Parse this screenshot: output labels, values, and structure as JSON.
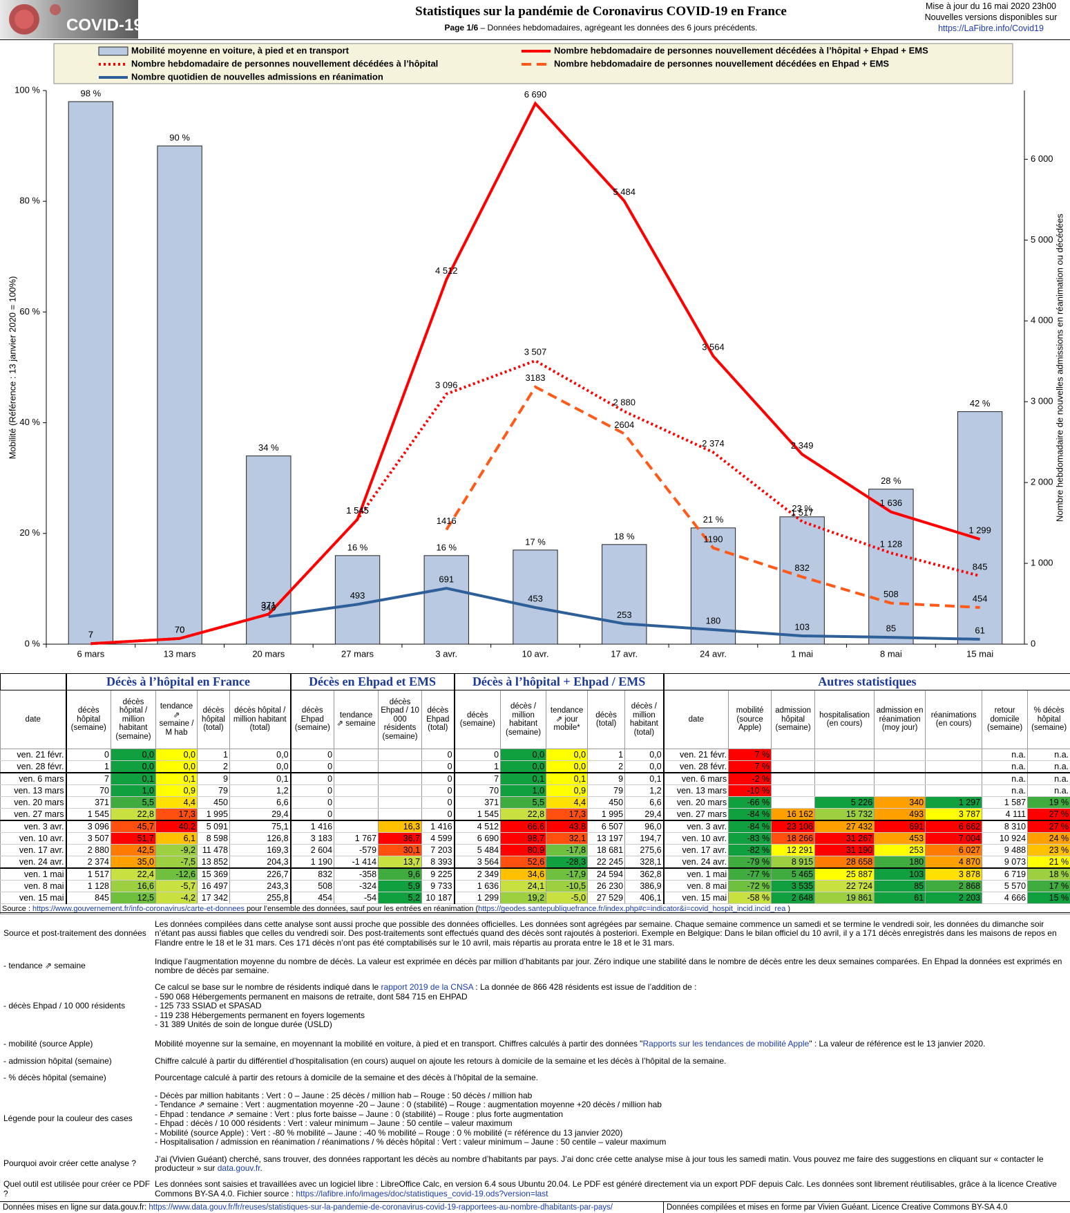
{
  "header": {
    "logo": "COVID-19",
    "title": "Statistiques sur la pandémie de Coronavirus COVID-19 en France",
    "page": "Page 1/6",
    "subtitle": " – Données hebdomadaires, agrégeant les données des 6 jours précédents.",
    "update": [
      "Mise à jour du 16 mai 2020 23h00",
      "Nouvelles versions disponibles sur"
    ],
    "link": "https://LaFibre.info/Covid19"
  },
  "chart_data": {
    "type": "bar",
    "categories": [
      "6 mars",
      "13 mars",
      "20 mars",
      "27 mars",
      "3 avr.",
      "10 avr.",
      "17 avr.",
      "24 avr.",
      "1 mai",
      "8 mai",
      "15 mai"
    ],
    "ylabel": "Mobilité (Référence : 13 janvier 2020 = 100%)",
    "y2label": "Nombre hebdomadaire de nouvelles admissions en réanimation ou décédées",
    "ylim": [
      0,
      100
    ],
    "yticks": [
      {
        "value": 0,
        "label": "0 %"
      },
      {
        "value": 20,
        "label": "20 %"
      },
      {
        "value": 40,
        "label": "40 %"
      },
      {
        "value": 60,
        "label": "60 %"
      },
      {
        "value": 80,
        "label": "80 %"
      },
      {
        "value": 100,
        "label": "100 %"
      }
    ],
    "y2lim": [
      0,
      6850
    ],
    "y2ticks": [
      0,
      {
        "value": 1000,
        "label": "1 000"
      },
      {
        "value": 2000,
        "label": "2 000"
      },
      {
        "value": 3000,
        "label": "3 000"
      },
      {
        "value": 4000,
        "label": "4 000"
      },
      {
        "value": 5000,
        "label": "5 000"
      },
      {
        "value": 6000,
        "label": "6 000"
      }
    ],
    "grid": false,
    "series": [
      {
        "name": "Mobilité moyenne en voiture, à pied et en transport",
        "type": "bar",
        "color": "#b8c9e1",
        "values": [
          98,
          90,
          34,
          16,
          16,
          17,
          18,
          21,
          23,
          28,
          42
        ],
        "value_labels": [
          "98 %",
          "90 %",
          "34 %",
          "16 %",
          "16 %",
          "17 %",
          "18 %",
          "21 %",
          "23 %",
          "28 %",
          "42 %"
        ]
      },
      {
        "name": "Nombre hebdomadaire de personnes nouvellement décédées à l’hôpital + Ehpad + EMS",
        "type": "line",
        "dash": "solid",
        "axis": "y2",
        "color": "#ff0000",
        "values": [
          7,
          70,
          371,
          1545,
          4512,
          6690,
          5484,
          3564,
          2349,
          1636,
          1299
        ],
        "value_labels": [
          "7",
          "70",
          "371",
          "1 545",
          "4 512",
          "6 690",
          "5 484",
          "3 564",
          "2 349",
          "1 636",
          "1 299"
        ]
      },
      {
        "name": "Nombre hebdomadaire de personnes nouvellement décédées à l’hôpital",
        "type": "line",
        "dash": "dotted",
        "axis": "y2",
        "color": "#ff0000",
        "values": [
          7,
          70,
          371,
          1545,
          3096,
          3507,
          2880,
          2374,
          1517,
          1128,
          845
        ],
        "value_labels": [
          "7",
          "70",
          "371",
          "1 545",
          "3 096",
          "3 507",
          "2 880",
          "2 374",
          "1 517",
          "1 128",
          "845"
        ]
      },
      {
        "name": "Nombre hebdomadaire de personnes nouvellement décédées en Ehpad + EMS",
        "type": "line",
        "dash": "dashed",
        "axis": "y2",
        "color": "#ff5a1a",
        "values": [
          null,
          null,
          null,
          null,
          1416,
          3183,
          2604,
          1190,
          832,
          508,
          454
        ]
      },
      {
        "name": "Nombre quotidien de nouvelles admissions en réanimation",
        "type": "line",
        "dash": "solid",
        "axis": "y2",
        "color": "#2f5f98",
        "values": [
          null,
          null,
          340,
          493,
          691,
          453,
          253,
          180,
          103,
          85,
          61
        ]
      }
    ]
  },
  "table": {
    "groups": [
      "Décès à l’hôpital en France",
      "Décès en Ehpad et EMS",
      "Décès à l’hôpital + Ehpad / EMS",
      "Autres statistiques"
    ],
    "columns": [
      "date",
      "décès hôpital (semaine)",
      "décès hôpital / million habitant (semaine)",
      "tendance ⇗ semaine / M hab",
      "décès hôpital (total)",
      "décès hôpital / million habitant (total)",
      "décès Ehpad (semaine)",
      "tendance ⇗ semaine",
      "décès Ehpad / 10 000 résidents (semaine)",
      "décès Ehpad (total)",
      "décès (semaine)",
      "décès / million habitant (semaine)",
      "tendance ⇗ jour mobile*",
      "décès (total)",
      "décès / million habitant (total)",
      "date",
      "mobilité (source Apple)",
      "admission hôpital (semaine)",
      "hospitalisation (en cours)",
      "admission en réanimation (moy jour)",
      "réanimations (en cours)",
      "retour domicile (semaine)",
      "% décès hôpital (semaine)"
    ],
    "rows": [
      [
        "ven. 21 févr.",
        "0",
        "0,0",
        "0,0",
        "1",
        "0,0",
        "0",
        null,
        null,
        "0",
        "0",
        "0,0",
        "0,0",
        "1",
        "0,0",
        "ven. 21 févr.",
        "7 %",
        null,
        null,
        null,
        null,
        "n.a.",
        "n.a."
      ],
      [
        "ven. 28 févr.",
        "1",
        "0,0",
        "0,0",
        "2",
        "0,0",
        "0",
        null,
        null,
        "0",
        "1",
        "0,0",
        "0,0",
        "2",
        "0,0",
        "ven. 28 févr.",
        "7 %",
        null,
        null,
        null,
        null,
        "n.a.",
        "n.a."
      ],
      [
        "ven. 6 mars",
        "7",
        "0,1",
        "0,1",
        "9",
        "0,1",
        "0",
        null,
        null,
        "0",
        "7",
        "0,1",
        "0,1",
        "9",
        "0,1",
        "ven. 6 mars",
        "-2 %",
        null,
        null,
        null,
        null,
        "n.a.",
        "n.a."
      ],
      [
        "ven. 13 mars",
        "70",
        "1,0",
        "0,9",
        "79",
        "1,2",
        "0",
        null,
        null,
        "0",
        "70",
        "1,0",
        "0,9",
        "79",
        "1,2",
        "ven. 13 mars",
        "-10 %",
        null,
        null,
        null,
        null,
        "n.a.",
        "n.a."
      ],
      [
        "ven. 20 mars",
        "371",
        "5,5",
        "4,4",
        "450",
        "6,6",
        "0",
        null,
        null,
        "0",
        "371",
        "5,5",
        "4,4",
        "450",
        "6,6",
        "ven. 20 mars",
        "-66 %",
        null,
        "5 226",
        "340",
        "1 297",
        "1 587",
        "19 %"
      ],
      [
        "ven. 27 mars",
        "1 545",
        "22,8",
        "17,3",
        "1 995",
        "29,4",
        "0",
        null,
        null,
        "0",
        "1 545",
        "22,8",
        "17,3",
        "1 995",
        "29,4",
        "ven. 27 mars",
        "-84 %",
        "16 162",
        "15 732",
        "493",
        "3 787",
        "4 111",
        "27 %"
      ],
      [
        "ven. 3 avr.",
        "3 096",
        "45,7",
        "40,2",
        "5 091",
        "75,1",
        "1 416",
        null,
        "16,3",
        "1 416",
        "4 512",
        "66,6",
        "43,8",
        "6 507",
        "96,0",
        "ven. 3 avr.",
        "-84 %",
        "23 106",
        "27 432",
        "691",
        "6 662",
        "8 310",
        "27 %"
      ],
      [
        "ven. 10 avr.",
        "3 507",
        "51,7",
        "6,1",
        "8 598",
        "126,8",
        "3 183",
        "1 767",
        "36,7",
        "4 599",
        "6 690",
        "98,7",
        "32,1",
        "13 197",
        "194,7",
        "ven. 10 avr.",
        "-83 %",
        "18 266",
        "31 267",
        "453",
        "7 004",
        "10 924",
        "24 %"
      ],
      [
        "ven. 17 avr.",
        "2 880",
        "42,5",
        "-9,2",
        "11 478",
        "169,3",
        "2 604",
        "-579",
        "30,1",
        "7 203",
        "5 484",
        "80,9",
        "-17,8",
        "18 681",
        "275,6",
        "ven. 17 avr.",
        "-82 %",
        "12 291",
        "31 190",
        "253",
        "6 027",
        "9 488",
        "23 %"
      ],
      [
        "ven. 24 avr.",
        "2 374",
        "35,0",
        "-7,5",
        "13 852",
        "204,3",
        "1 190",
        "-1 414",
        "13,7",
        "8 393",
        "3 564",
        "52,6",
        "-28,3",
        "22 245",
        "328,1",
        "ven. 24 avr.",
        "-79 %",
        "8 915",
        "28 658",
        "180",
        "4 870",
        "9 073",
        "21 %"
      ],
      [
        "ven. 1 mai",
        "1 517",
        "22,4",
        "-12,6",
        "15 369",
        "226,7",
        "832",
        "-358",
        "9,6",
        "9 225",
        "2 349",
        "34,6",
        "-17,9",
        "24 594",
        "362,8",
        "ven. 1 mai",
        "-77 %",
        "5 465",
        "25 887",
        "103",
        "3 878",
        "6 719",
        "18 %"
      ],
      [
        "ven. 8 mai",
        "1 128",
        "16,6",
        "-5,7",
        "16 497",
        "243,3",
        "508",
        "-324",
        "5,9",
        "9 733",
        "1 636",
        "24,1",
        "-10,5",
        "26 230",
        "386,9",
        "ven. 8 mai",
        "-72 %",
        "3 535",
        "22 724",
        "85",
        "2 868",
        "5 570",
        "17 %"
      ],
      [
        "ven. 15 mai",
        "845",
        "12,5",
        "-4,2",
        "17 342",
        "255,8",
        "454",
        "-54",
        "5,2",
        "10 187",
        "1 299",
        "19,2",
        "-5,0",
        "27 529",
        "406,1",
        "ven. 15 mai",
        "-58 %",
        "2 648",
        "19 861",
        "61",
        "2 203",
        "4 666",
        "15 %"
      ]
    ],
    "source": [
      "Source : ",
      {
        "link": "https://www.gouvernement.fr/info-coronavirus/carte-et-donnees"
      },
      "  pour l’ensemble des données, sauf pour les entrées en réanimation (",
      {
        "link": "https://geodes.santepubliquefrance.fr/index.php#c=indicator&i=covid_hospit_incid.incid_rea"
      },
      " )"
    ]
  },
  "notes": [
    {
      "label": "Source et post-traitement des données",
      "lines": [
        [
          "Les données compilées dans cette analyse sont aussi proche que possible des données officielles. Les données sont agrégées par semaine. Chaque semaine commence un samedi et se termine le vendredi soir, les données du dimanche soir n’étant pas aussi fiables que celles du vendredi soir. Des post-traitements sont effectués quand des décès sont rajoutés à posteriori. Exemple en Belgique: Dans le bilan officiel du 10 avril, il y a 171 décès enregistrés dans les maisons de repos en Flandre entre le 18 et le 31 mars. Ces 171 décès n’ont pas été comptabilisés sur le 10 avril, mais répartis au prorata entre le 18 et le 31 mars."
        ]
      ]
    },
    {
      "label": "- tendance ⇗ semaine",
      "lines": [
        [
          "Indique l’augmentation moyenne du nombre de décès. La valeur est exprimée en décès par million d’habitants par jour. Zéro indique une stabilité dans le nombre de décès entre les deux semaines comparées. En Ehpad la données est exprimés en nombre de décès par semaine."
        ]
      ]
    },
    {
      "label": "- décès Ehpad / 10 000 résidents",
      "lines": [
        [
          "Ce calcul se base sur le nombre de résidents indiqué dans le ",
          {
            "link": "rapport 2019 de la CNSA"
          },
          " : La donnée de 866 428 résidents est issue de l’addition de :"
        ],
        [
          "- 590 068 Hébergements permanent en maisons de retraite, dont 584 715 en EHPAD"
        ],
        [
          "- 125 733 SSIAD et SPASAD"
        ],
        [
          "- 119 238 Hébergements permanent en foyers logements"
        ],
        [
          "- 31 389 Unités de soin de longue durée (USLD)"
        ]
      ]
    },
    {
      "label": "- mobilité (source Apple)",
      "lines": [
        [
          "Mobilité moyenne sur la semaine, en moyennant la mobilité en voiture, à pied et en transport. Chiffres calculés à partir des données \"",
          {
            "link": "Rapports sur les tendances de mobilité Apple"
          },
          "\" : La valeur de référence est le 13 janvier 2020."
        ]
      ]
    },
    {
      "label": "- admission hôpital (semaine)",
      "lines": [
        [
          "Chiffre calculé à partir du différentiel d’hospitalisation (en cours) auquel on ajoute les retours à  domicile de la semaine et les décès à l’hôpital de la semaine."
        ]
      ]
    },
    {
      "label": "- % décès hôpital (semaine)",
      "lines": [
        [
          "Pourcentage calculé à partir des retours à  domicile de la semaine et des décès à l’hôpital de la semaine."
        ]
      ]
    },
    {
      "label": "Légende pour la couleur des cases",
      "lines": [
        [
          "- Décès par million habitants : Vert : 0 – Jaune : 25 décès / million hab – Rouge : 50 décès / million hab"
        ],
        [
          "- Tendance ⇗ semaine : Vert : augmentation moyenne -20 – Jaune : 0 (stabilité) – Rouge : augmentation moyenne +20 décès / million hab"
        ],
        [
          "- Ehpad : tendance ⇗ semaine : Vert : plus forte baisse – Jaune : 0 (stabilité) – Rouge : plus forte augmentation"
        ],
        [
          "- Ehpad : décès / 10 000 résidents : Vert : valeur minimum – Jaune : 50 centile – valeur maximum"
        ],
        [
          "- Mobilité (source Apple) : Vert : -80 % mobilité – Jaune : -40 % mobilité – Rouge : 0 % mobilité (= référence du 13 janvier 2020)"
        ],
        [
          "- Hospitalisation / admission en réanimation / réanimations / % décès hôpital : Vert : valeur minimum – Jaune : 50 centile – valeur maximum"
        ]
      ]
    },
    {
      "label": "Pourquoi avoir créer cette analyse ?",
      "lines": [
        [
          "J’ai (Vivien Guéant) cherché, sans trouver, des données rapportant les décès au nombre d’habitants par pays. J’ai donc crée cette analyse mise à jour tous les samedi matin. Vous pouvez me faire des suggestions en cliquant sur « contacter le producteur » sur ",
          {
            "link": "data.gouv.fr"
          },
          "."
        ]
      ]
    },
    {
      "label": "Quel outil est utilisée pour créer ce PDF ?",
      "lines": [
        [
          "Les données sont saisies et travaillées avec un logiciel libre : LibreOffice Calc, en version 6.4 sous Ubuntu 20.04. Le PDF est généré directement via un export PDF depuis Calc. Les données sont librement réutilisables, grâce à la licence Creative Commons BY-SA 4.0. Fichier source : ",
          {
            "link": "https://lafibre.info/images/doc/statistiques_covid-19.ods?version=last"
          }
        ]
      ]
    }
  ],
  "footer": {
    "left": [
      "Données mises en ligne sur data.gouv.fr: ",
      {
        "link": "https://www.data.gouv.fr/fr/reuses/statistiques-sur-la-pandemie-de-coronavirus-covid-19-rapportees-au-nombre-dhabitants-par-pays/"
      }
    ],
    "right": "Données compilées et mises en forme par Vivien Guéant. Licence Creative Commons BY-SA 4.0"
  }
}
